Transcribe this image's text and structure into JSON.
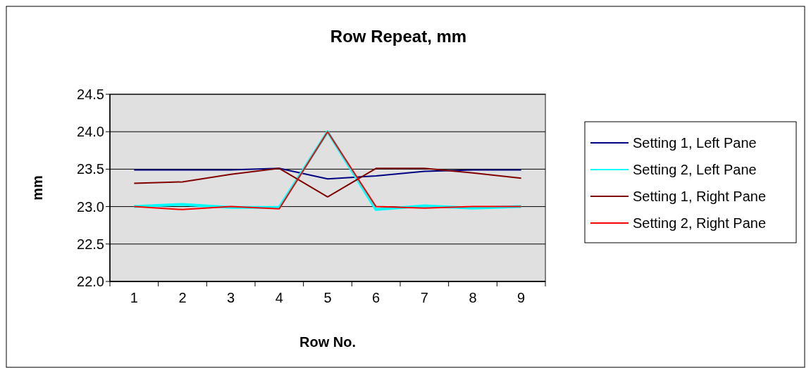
{
  "chart_data": {
    "type": "line",
    "title": "Row Repeat, mm",
    "xlabel": "Row No.",
    "ylabel": "mm",
    "categories": [
      "1",
      "2",
      "3",
      "4",
      "5",
      "6",
      "7",
      "8",
      "9"
    ],
    "series": [
      {
        "name": "Setting 1, Left Pane",
        "color": "#000080",
        "values": [
          23.49,
          23.49,
          23.49,
          23.51,
          23.37,
          23.41,
          23.47,
          23.49,
          23.49
        ]
      },
      {
        "name": "Setting 2, Left Pane",
        "color": "#00ffff",
        "values": [
          23.0,
          23.03,
          22.99,
          22.99,
          24.0,
          22.96,
          23.01,
          22.98,
          23.0
        ]
      },
      {
        "name": "Setting 1, Right Pane",
        "color": "#800000",
        "values": [
          23.31,
          23.33,
          23.43,
          23.51,
          23.13,
          23.51,
          23.51,
          23.45,
          23.38
        ]
      },
      {
        "name": "Setting 2, Right Pane",
        "color": "#ff0000",
        "values": [
          23.0,
          22.96,
          23.0,
          22.97,
          24.0,
          23.0,
          22.98,
          23.0,
          23.0
        ]
      }
    ],
    "ylim": [
      22.0,
      24.5
    ],
    "yticks": [
      {
        "value": 22,
        "label": "22.0"
      },
      {
        "value": 22.5,
        "label": "22.5"
      },
      {
        "value": 23,
        "label": "23.0"
      },
      {
        "value": 23.5,
        "label": "23.5"
      },
      {
        "value": 24,
        "label": "24.0"
      },
      {
        "value": 24.5,
        "label": "24.5"
      }
    ],
    "grid": "y",
    "legend": "right",
    "marker": "none",
    "line_style": "solid"
  }
}
